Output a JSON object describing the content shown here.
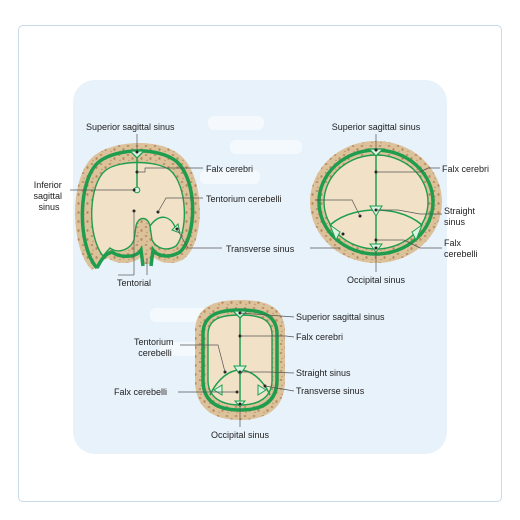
{
  "colors": {
    "bone": "#dcc29b",
    "bone_speckle": "#b8895e",
    "dura": "#1f9d4e",
    "sinus_fill": "#d9f2e2",
    "brain": "#f1e2c7",
    "panel": "#e8f2fb",
    "line": "#555555"
  },
  "diagram1": {
    "superior_sagittal_sinus": "Superior sagittal sinus",
    "falx_cerebri": "Falx cerebri",
    "inferior_sagittal_sinus": [
      "Inferior",
      "sagittal",
      "sinus"
    ],
    "tentorium_cerebelli": "Tentorium cerebelli",
    "transverse_sinus": "Transverse sinus",
    "tentorial": "Tentorial"
  },
  "diagram2": {
    "superior_sagittal_sinus": "Superior sagittal sinus",
    "falx_cerebri": "Falx cerebri",
    "straight_sinus": [
      "Straight",
      "sinus"
    ],
    "falx_cerebelli": [
      "Falx",
      "cerebelli"
    ],
    "occipital_sinus": "Occipital sinus"
  },
  "diagram3": {
    "superior_sagittal_sinus": "Superior sagittal sinus",
    "falx_cerebri": "Falx cerebri",
    "tentorium_cerebelli": [
      "Tentorium",
      "cerebelli"
    ],
    "straight_sinus": "Straight sinus",
    "transverse_sinus": "Transverse sinus",
    "falx_cerebelli": "Falx cerebelli",
    "occipital_sinus": "Occipital sinus"
  }
}
